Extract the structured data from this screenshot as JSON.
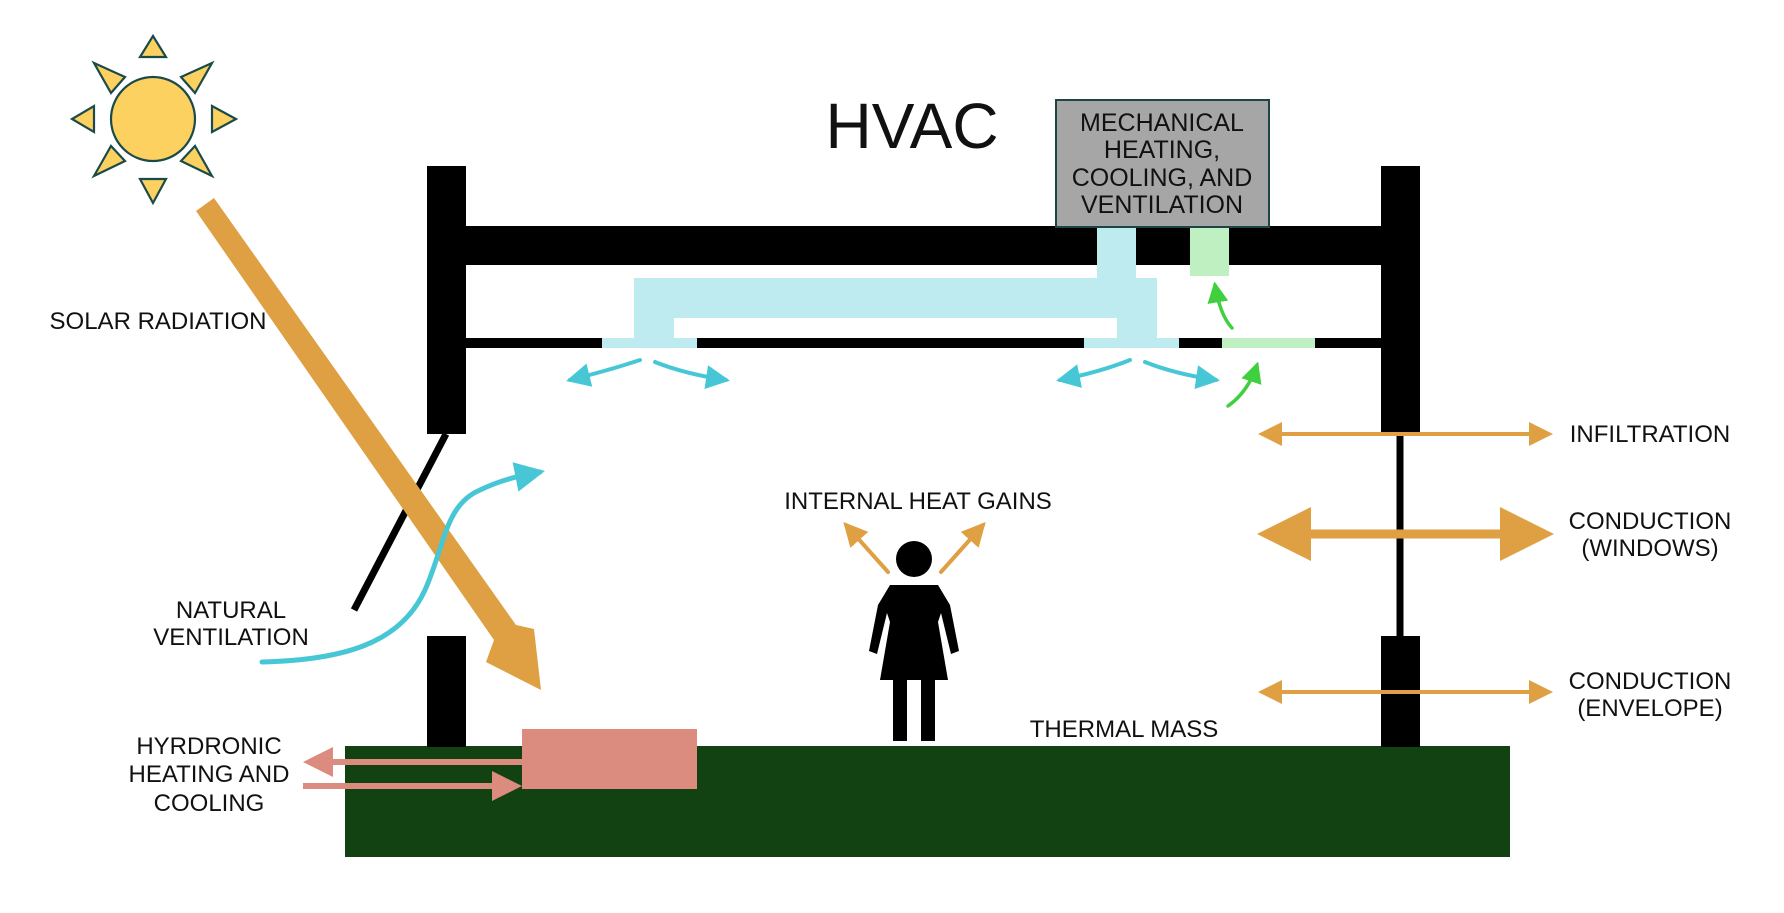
{
  "title": "HVAC",
  "mechanical_box": {
    "lines": [
      "MECHANICAL",
      "HEATING,",
      "COOLING, AND",
      "VENTILATION"
    ]
  },
  "labels": {
    "solar_radiation": "SOLAR RADIATION",
    "natural_ventilation": [
      "NATURAL",
      "VENTILATION"
    ],
    "hydronic": [
      "HYRDRONIC",
      "HEATING AND",
      "COOLING"
    ],
    "internal_heat_gains": "INTERNAL HEAT GAINS",
    "thermal_mass": "THERMAL MASS",
    "infiltration": "INFILTRATION",
    "conduction_windows": [
      "CONDUCTION",
      "(WINDOWS)"
    ],
    "conduction_envelope": [
      "CONDUCTION",
      "(ENVELOPE)"
    ]
  },
  "colors": {
    "structure": "#000000",
    "heat_flow": "#dea042",
    "supply_duct": "#bdebf0",
    "supply_air": "#47c7d6",
    "return_duct": "#bff0c2",
    "return_air": "#3fcf3f",
    "hydronic": "#db8c7e",
    "thermal_mass": "#124212",
    "mechanical_box": "#a6a6a6",
    "sun": "#fdd160",
    "sun_outline": "#1a4a4a"
  },
  "icons": {
    "sun": "sun-icon",
    "person": "person-icon"
  }
}
